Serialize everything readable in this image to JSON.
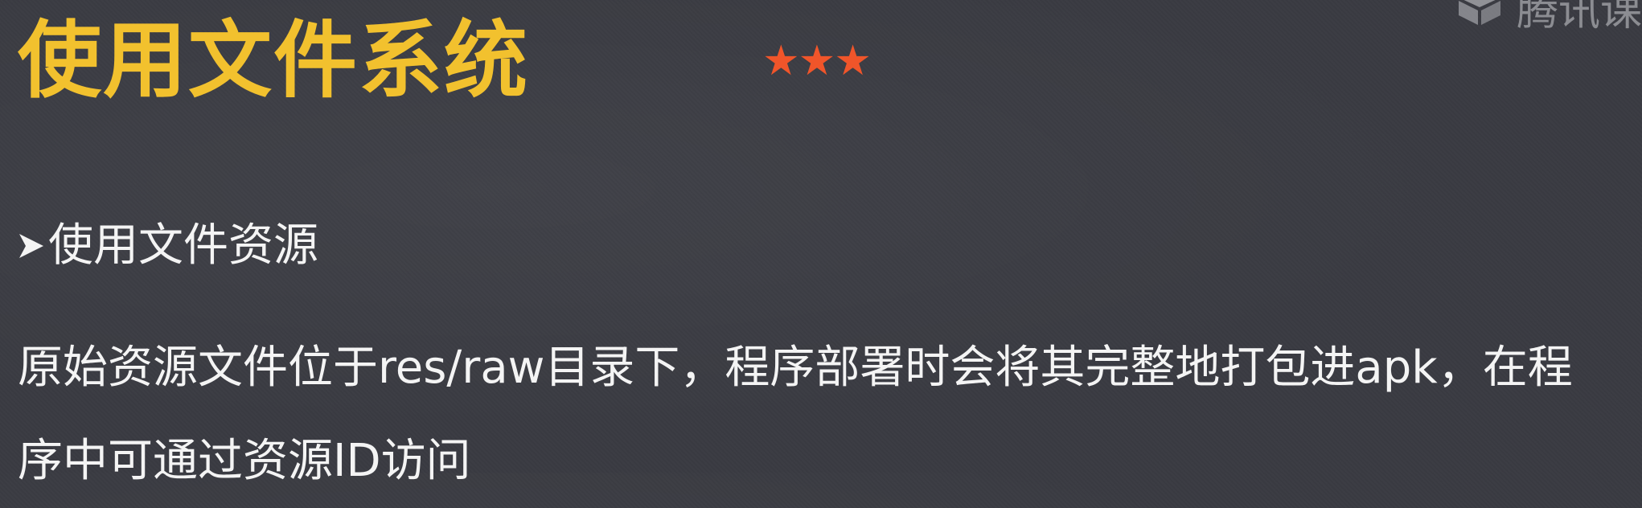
{
  "slide": {
    "title": "使用文件系统",
    "difficulty": "★★★",
    "colors": {
      "background": "#3a3b42",
      "title": "#f2c12e",
      "stars": "#f0552a",
      "body_text": "#f4f4f4"
    }
  },
  "watermark": {
    "logo_icon": "tencent-classroom-logo-icon",
    "text": "腾讯课"
  },
  "section": {
    "bullet_icon": "arrowhead-bullet-icon",
    "heading": "使用文件资源"
  },
  "paragraph": {
    "line_1": "原始资源文件位于res/raw目录下，程序部署时会将其完整地打包进apk，在程",
    "line_2": "序中可通过资源ID访问"
  }
}
